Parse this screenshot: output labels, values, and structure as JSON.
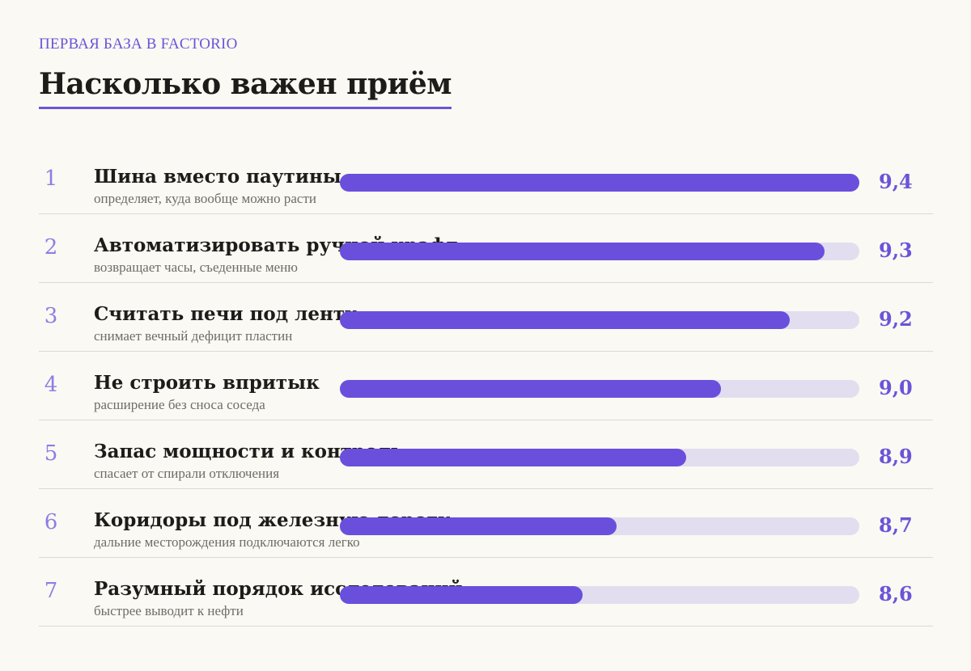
{
  "kicker": "ПЕРВАЯ БАЗА В FACTORIO",
  "title": "Насколько важен приём",
  "colors": {
    "accent": "#6a4fdc",
    "track": "#e2def0",
    "rank": "#8d7ee3"
  },
  "chart_data": {
    "type": "bar",
    "orientation": "horizontal",
    "xlim": [
      7.9,
      9.4
    ],
    "grid": false,
    "categories": [
      "Шина вместо паутины",
      "Автоматизировать ручной крафт",
      "Считать печи под ленту",
      "Не строить впритык",
      "Запас мощности и контроль",
      "Коридоры под железную дорогу",
      "Разумный порядок исследований"
    ],
    "items": [
      {
        "rank": "1",
        "label": "Шина вместо паутины",
        "sub": "определяет, куда вообще можно расти",
        "value": 9.4,
        "display": "9,4"
      },
      {
        "rank": "2",
        "label": "Автоматизировать ручной крафт",
        "sub": "возвращает часы, съеденные меню",
        "value": 9.3,
        "display": "9,3"
      },
      {
        "rank": "3",
        "label": "Считать печи под ленту",
        "sub": "снимает вечный дефицит пластин",
        "value": 9.2,
        "display": "9,2"
      },
      {
        "rank": "4",
        "label": "Не строить впритык",
        "sub": "расширение без сноса соседа",
        "value": 9.0,
        "display": "9,0"
      },
      {
        "rank": "5",
        "label": "Запас мощности и контроль",
        "sub": "спасает от спирали отключения",
        "value": 8.9,
        "display": "8,9"
      },
      {
        "rank": "6",
        "label": "Коридоры под железную дорогу",
        "sub": "дальние месторождения подключаются легко",
        "value": 8.7,
        "display": "8,7"
      },
      {
        "rank": "7",
        "label": "Разумный порядок исследований",
        "sub": "быстрее выводит к нефти",
        "value": 8.6,
        "display": "8,6"
      }
    ]
  }
}
